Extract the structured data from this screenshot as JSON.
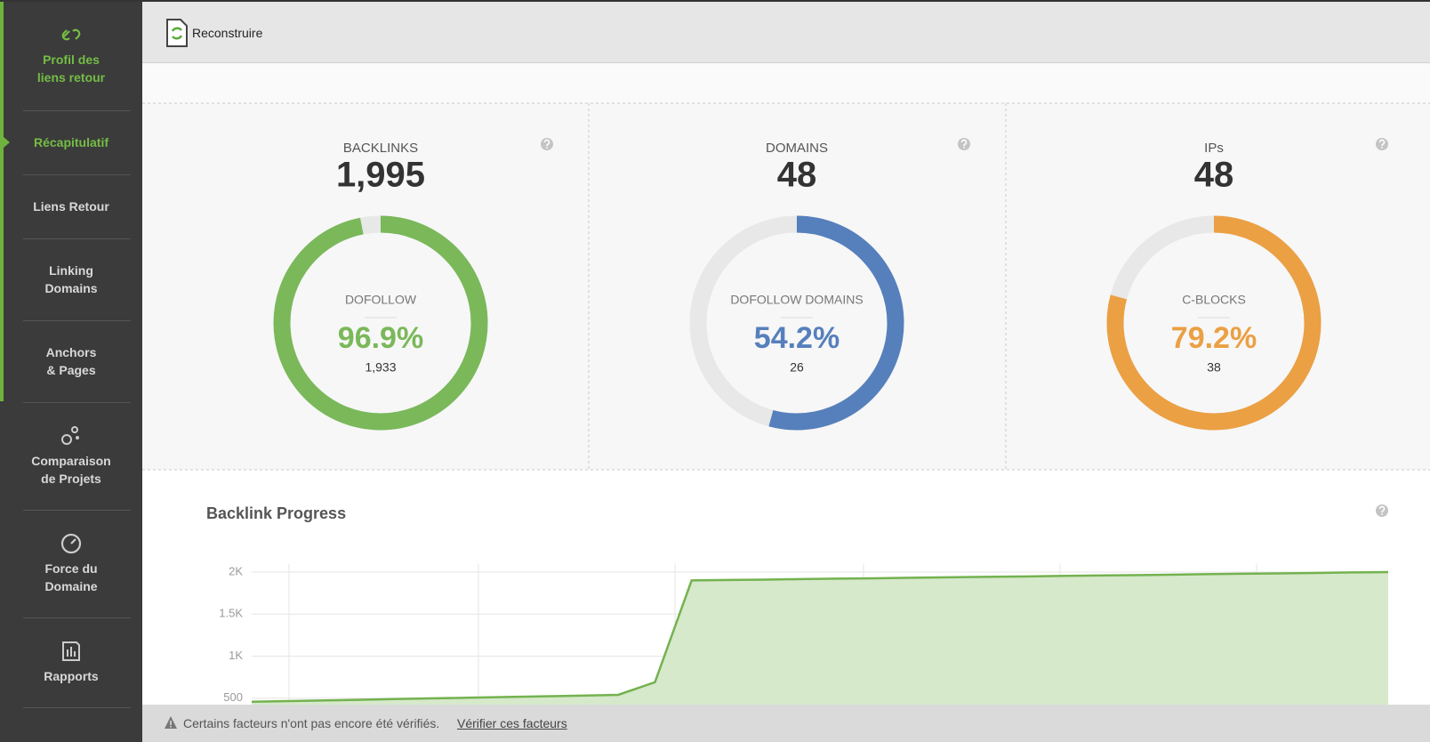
{
  "sidebar": {
    "items": [
      {
        "label": [
          "Profil des",
          "liens retour"
        ]
      },
      {
        "label": [
          "Récapitulatif"
        ]
      },
      {
        "label": [
          "Liens Retour"
        ]
      },
      {
        "label": [
          "Linking",
          "Domains"
        ]
      },
      {
        "label": [
          "Anchors",
          "& Pages"
        ]
      },
      {
        "label": [
          "Comparaison",
          "de Projets"
        ]
      },
      {
        "label": [
          "Force du",
          "Domaine"
        ]
      },
      {
        "label": [
          "Rapports"
        ]
      }
    ]
  },
  "header": {
    "button": "Reconstruire"
  },
  "cards": [
    {
      "title": "BACKLINKS",
      "total": "1,995",
      "ring_label": "DOFOLLOW",
      "percent": {
        "value": 96.9,
        "label": "96.9%"
      },
      "count": "1,933",
      "color": "#7ab85a"
    },
    {
      "title": "DOMAINS",
      "total": "48",
      "ring_label": "DOFOLLOW DOMAINS",
      "percent": {
        "value": 54.2,
        "label": "54.2%"
      },
      "count": "26",
      "color": "#5680bc"
    },
    {
      "title": "IPs",
      "total": "48",
      "ring_label": "C-BLOCKS",
      "percent": {
        "value": 79.2,
        "label": "79.2%"
      },
      "count": "38",
      "color": "#eba044"
    }
  ],
  "progress": {
    "title": "Backlink Progress",
    "ylim": [
      0,
      2100
    ],
    "yticks": [
      500,
      {
        "value": 1000,
        "label": "1K"
      },
      {
        "value": 1500,
        "label": "1.5K"
      },
      {
        "value": 2000,
        "label": "2K"
      }
    ],
    "values": [
      457,
      465,
      473,
      481,
      490,
      498,
      506,
      514,
      522,
      530,
      540,
      690,
      1900,
      1905,
      1910,
      1916,
      1921,
      1926,
      1932,
      1937,
      1942,
      1947,
      1953,
      1958,
      1963,
      1968,
      1974,
      1979,
      1984,
      1989,
      1995,
      2000
    ],
    "color": "#74b24f",
    "fill": "#d6e9cb"
  },
  "footer": {
    "message": "Certains facteurs n'ont pas encore été vérifiés.",
    "link": "Vérifier ces facteurs"
  }
}
